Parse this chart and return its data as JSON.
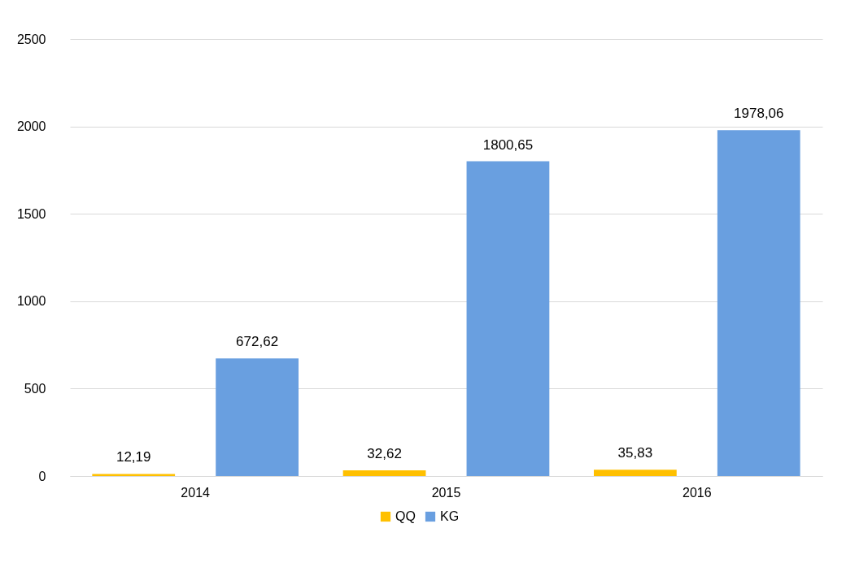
{
  "chart_data": {
    "type": "bar",
    "categories": [
      "2014",
      "2015",
      "2016"
    ],
    "series": [
      {
        "name": "QQ",
        "color": "#ffc000",
        "values": [
          12.19,
          32.62,
          35.83
        ],
        "value_labels": [
          "12,19",
          "32,62",
          "35,83"
        ]
      },
      {
        "name": "KG",
        "color": "#699fe0",
        "values": [
          672.62,
          1800.65,
          1978.06
        ],
        "value_labels": [
          "672,62",
          "1800,65",
          "1978,06"
        ]
      }
    ],
    "ylim": [
      0,
      2500
    ],
    "yticks": [
      0,
      500,
      1000,
      1500,
      2000,
      2500
    ],
    "grid": "y",
    "legend": "bottom"
  }
}
